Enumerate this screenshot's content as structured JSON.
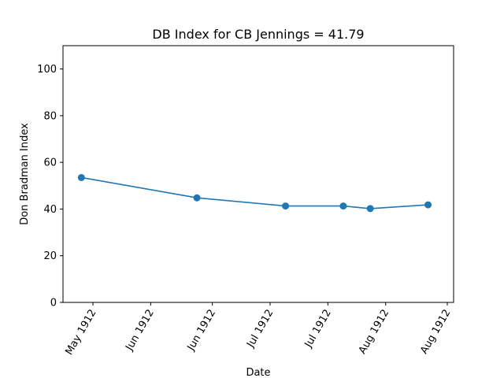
{
  "chart_data": {
    "type": "line",
    "title": "DB Index for CB Jennings = 41.79",
    "xlabel": "Date",
    "ylabel": "Don Bradman Index",
    "ylim": [
      0,
      110
    ],
    "yticks": [
      0,
      20,
      40,
      60,
      80,
      100
    ],
    "x_tick_labels": [
      "May 1912",
      "Jun 1912",
      "Jun 1912",
      "Jul 1912",
      "Jul 1912",
      "Aug 1912",
      "Aug 1912"
    ],
    "x_tick_dates": [
      "1912-05-01",
      "1912-05-16",
      "1912-06-01",
      "1912-06-16",
      "1912-07-01",
      "1912-07-16",
      "1912-08-01"
    ],
    "xlim": [
      "1912-04-28",
      "1912-08-03"
    ],
    "grid": false,
    "series": [
      {
        "x": [
          "1912-04-28",
          "1912-05-28",
          "1912-06-20",
          "1912-07-05",
          "1912-07-12",
          "1912-07-27"
        ],
        "values": [
          53.5,
          44.8,
          41.3,
          41.3,
          40.2,
          41.8
        ],
        "color": "#1f77b4",
        "marker": "circle"
      }
    ]
  }
}
